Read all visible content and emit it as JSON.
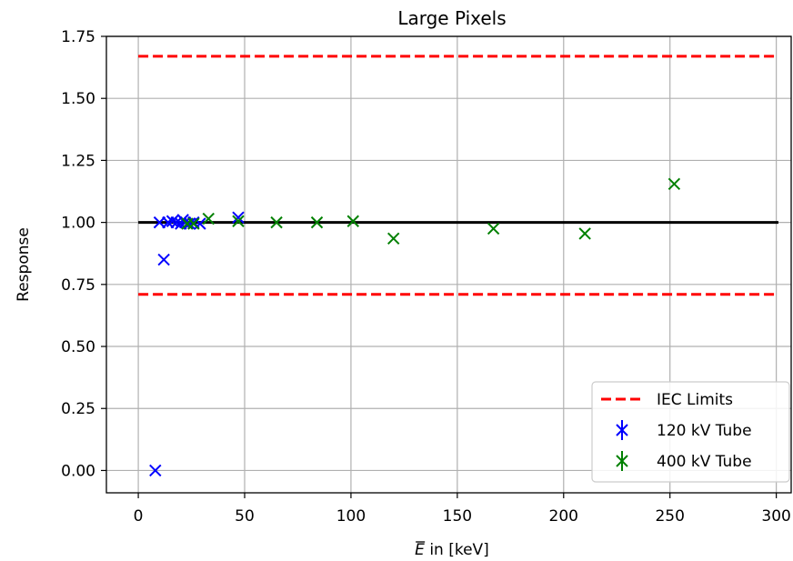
{
  "chart_data": {
    "type": "scatter",
    "title": "Large Pixels",
    "xlabel_symbol": "E",
    "xlabel_rest": " in [keV]",
    "ylabel": "Response",
    "xlim": [
      -15,
      307
    ],
    "ylim": [
      -0.09,
      1.75
    ],
    "xticks": [
      0,
      50,
      100,
      150,
      200,
      250,
      300
    ],
    "yticks": [
      0.0,
      0.25,
      0.5,
      0.75,
      1.0,
      1.25,
      1.5,
      1.75
    ],
    "ytick_labels": [
      "0.00",
      "0.25",
      "0.50",
      "0.75",
      "1.00",
      "1.25",
      "1.50",
      "1.75"
    ],
    "grid": true,
    "legend_position": "lower-right",
    "reference_line": {
      "y": 1.0,
      "x": [
        0,
        301
      ],
      "color": "#000000"
    },
    "limits": {
      "name": "IEC Limits",
      "color": "#ff0000",
      "x": [
        0,
        301
      ],
      "values": [
        0.71,
        1.67
      ]
    },
    "series": [
      {
        "name": "120 kV Tube",
        "color": "#0000ff",
        "points": [
          [
            8,
            0.0
          ],
          [
            12,
            0.85
          ],
          [
            10,
            1.0
          ],
          [
            14,
            1.0
          ],
          [
            16,
            1.005
          ],
          [
            18,
            1.0
          ],
          [
            20,
            0.995
          ],
          [
            21,
            1.01
          ],
          [
            22,
            1.0
          ],
          [
            24,
            0.995
          ],
          [
            26,
            1.0
          ],
          [
            29,
            0.995
          ],
          [
            47,
            1.02
          ]
        ]
      },
      {
        "name": "400 kV Tube",
        "color": "#008000",
        "points": [
          [
            23,
            0.995
          ],
          [
            26,
            0.995
          ],
          [
            33,
            1.015
          ],
          [
            47,
            1.005
          ],
          [
            65,
            1.0
          ],
          [
            84,
            1.0
          ],
          [
            101,
            1.005
          ],
          [
            120,
            0.935
          ],
          [
            167,
            0.975
          ],
          [
            210,
            0.955
          ],
          [
            252,
            1.155
          ]
        ]
      }
    ]
  }
}
